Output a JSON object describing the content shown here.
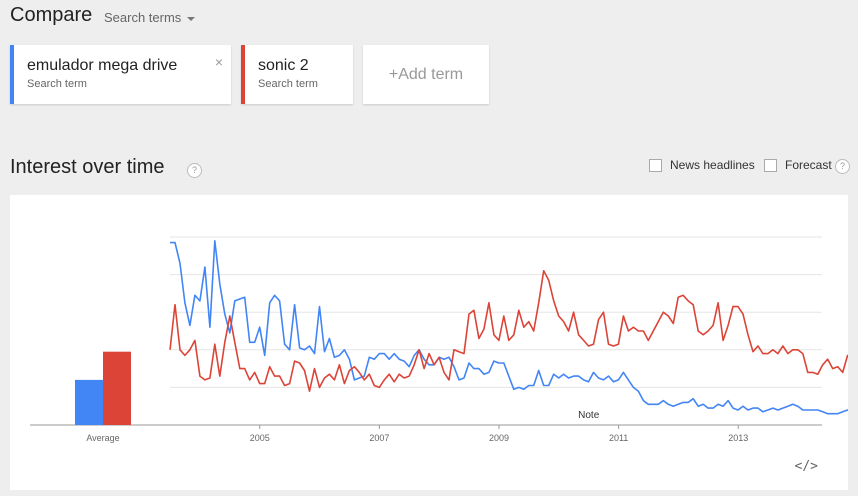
{
  "header": {
    "title": "Compare",
    "menu_label": "Search terms"
  },
  "terms": [
    {
      "name": "emulador mega drive",
      "sub": "Search term",
      "color": "#4285f4"
    },
    {
      "name": "sonic 2",
      "sub": "Search term",
      "color": "#db4437"
    }
  ],
  "add_term_label": "+Add term",
  "remove_glyph": "×",
  "section": {
    "title": "Interest over time",
    "help": "?",
    "news_headlines": "News headlines",
    "forecast": "Forecast"
  },
  "embed_glyph": "</>",
  "chart_data": {
    "type": "line",
    "x_range": [
      2004.0,
      2014.9
    ],
    "ylim": [
      0,
      100
    ],
    "grid": true,
    "x_ticks": [
      "2005",
      "2007",
      "2009",
      "2011",
      "2013"
    ],
    "average_label": "Average",
    "note_label": "Note",
    "averages": [
      24,
      39
    ],
    "series": [
      {
        "name": "emulador mega drive",
        "color": "#4285f4",
        "step": 0.0833,
        "values": [
          97,
          97,
          86,
          65,
          53,
          69,
          66,
          84,
          52,
          98,
          75,
          59,
          49,
          66,
          67,
          68,
          44,
          44,
          52,
          37,
          65,
          69,
          66,
          43,
          40,
          64,
          41,
          40,
          42,
          38,
          63,
          39,
          46,
          36,
          37,
          40,
          35,
          24,
          25,
          26,
          36,
          35,
          38,
          38,
          35,
          38,
          35,
          34,
          31,
          37,
          40,
          35,
          32,
          32,
          36,
          35,
          36,
          31,
          24,
          25,
          33,
          30,
          30,
          27,
          28,
          34,
          33,
          33,
          26,
          19,
          20,
          19,
          21,
          21,
          29,
          21,
          21,
          27,
          25,
          27,
          25,
          26,
          26,
          24,
          23,
          28,
          25,
          24,
          26,
          23,
          24,
          28,
          24,
          20,
          18,
          13,
          11,
          11,
          11,
          13,
          11,
          10,
          11,
          12,
          12,
          14,
          10,
          11,
          9,
          9,
          11,
          10,
          13,
          9,
          8,
          10,
          8,
          9,
          9,
          7,
          8,
          9,
          8,
          9,
          10,
          11,
          10,
          8,
          8,
          8,
          8,
          7,
          6,
          6,
          6,
          7,
          8,
          6,
          6,
          6,
          6,
          5,
          6,
          6,
          6,
          5,
          4,
          4,
          5,
          5,
          4,
          3,
          3,
          3,
          3,
          3
        ]
      },
      {
        "name": "sonic 2",
        "color": "#db4437",
        "step": 0.0833,
        "values": [
          40,
          64,
          40,
          37,
          40,
          45,
          26,
          24,
          25,
          43,
          26,
          44,
          58,
          44,
          30,
          30,
          24,
          28,
          22,
          22,
          31,
          26,
          26,
          21,
          22,
          34,
          33,
          29,
          18,
          30,
          20,
          25,
          27,
          24,
          32,
          22,
          29,
          31,
          28,
          24,
          27,
          21,
          20,
          24,
          27,
          23,
          27,
          25,
          26,
          32,
          40,
          30,
          38,
          32,
          36,
          28,
          24,
          40,
          39,
          38,
          59,
          61,
          46,
          51,
          65,
          48,
          45,
          58,
          45,
          48,
          61,
          52,
          55,
          50,
          65,
          82,
          77,
          66,
          58,
          55,
          50,
          60,
          48,
          45,
          42,
          43,
          56,
          60,
          43,
          42,
          43,
          58,
          50,
          52,
          50,
          50,
          45,
          50,
          55,
          60,
          58,
          54,
          68,
          69,
          66,
          64,
          50,
          48,
          50,
          53,
          65,
          45,
          53,
          63,
          63,
          59,
          48,
          39,
          42,
          38,
          38,
          40,
          38,
          42,
          38,
          40,
          40,
          38,
          28,
          28,
          27,
          32,
          35,
          30,
          31,
          28,
          37,
          33,
          28,
          35,
          35,
          30,
          32,
          30,
          30,
          28,
          25,
          30,
          29,
          28,
          28,
          27,
          30,
          32,
          29,
          28
        ]
      }
    ]
  }
}
